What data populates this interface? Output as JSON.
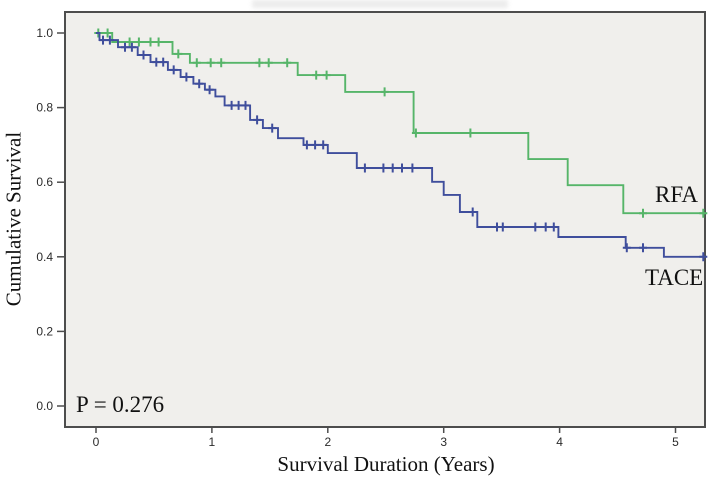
{
  "figure": {
    "background": "#ffffff",
    "plot_background": "#f0efec",
    "border_color": "#4d4d4d",
    "tick_color": "#4d4d4d",
    "tick_label_color": "#2b2b2b"
  },
  "chart_data": {
    "type": "line",
    "subtype": "kaplan_meier_step",
    "title": "",
    "xlabel": "Survival Duration (Years)",
    "ylabel": "Cumulative Survival",
    "annotation": {
      "text": "P = 0.276",
      "position": "bottom-left"
    },
    "grid": false,
    "legend_position": "labels-at-line-ends",
    "xlim": [
      -0.27,
      5.27
    ],
    "ylim": [
      -0.06,
      1.06
    ],
    "x_ticks": [
      {
        "label": "0",
        "value": 0
      },
      {
        "label": "1",
        "value": 1
      },
      {
        "label": "2",
        "value": 2
      },
      {
        "label": "3",
        "value": 3
      },
      {
        "label": "4",
        "value": 4
      },
      {
        "label": "5",
        "value": 5
      }
    ],
    "y_ticks": [
      {
        "label": "0.0",
        "value": 0.0
      },
      {
        "label": "0.2",
        "value": 0.2
      },
      {
        "label": "0.4",
        "value": 0.4
      },
      {
        "label": "0.6",
        "value": 0.6
      },
      {
        "label": "0.8",
        "value": 0.8
      },
      {
        "label": "1.0",
        "value": 1.0
      }
    ],
    "series": [
      {
        "name": "RFA",
        "color": "#56b569",
        "end_time": 5.26,
        "steps": [
          [
            0.0,
            1.0
          ],
          [
            0.14,
            0.976
          ],
          [
            0.66,
            0.944
          ],
          [
            0.81,
            0.92
          ],
          [
            1.74,
            0.887
          ],
          [
            2.15,
            0.842
          ],
          [
            2.74,
            0.732
          ],
          [
            3.73,
            0.662
          ],
          [
            4.07,
            0.592
          ],
          [
            4.55,
            0.517
          ]
        ],
        "censor_marks": [
          [
            0.02,
            1.0
          ],
          [
            0.1,
            1.0
          ],
          [
            0.29,
            0.976
          ],
          [
            0.37,
            0.976
          ],
          [
            0.47,
            0.976
          ],
          [
            0.54,
            0.976
          ],
          [
            0.71,
            0.944
          ],
          [
            0.87,
            0.92
          ],
          [
            0.99,
            0.92
          ],
          [
            1.08,
            0.92
          ],
          [
            1.41,
            0.92
          ],
          [
            1.49,
            0.92
          ],
          [
            1.65,
            0.92
          ],
          [
            1.9,
            0.887
          ],
          [
            1.99,
            0.887
          ],
          [
            2.49,
            0.842
          ],
          [
            2.76,
            0.732
          ],
          [
            3.23,
            0.732
          ],
          [
            4.72,
            0.517
          ],
          [
            5.24,
            0.517
          ]
        ]
      },
      {
        "name": "TACE",
        "color": "#3f4e9c",
        "end_time": 5.27,
        "steps": [
          [
            0.0,
            1.0
          ],
          [
            0.03,
            0.981
          ],
          [
            0.19,
            0.962
          ],
          [
            0.36,
            0.941
          ],
          [
            0.47,
            0.922
          ],
          [
            0.62,
            0.901
          ],
          [
            0.73,
            0.882
          ],
          [
            0.84,
            0.864
          ],
          [
            0.94,
            0.848
          ],
          [
            1.03,
            0.83
          ],
          [
            1.11,
            0.806
          ],
          [
            1.33,
            0.767
          ],
          [
            1.44,
            0.745
          ],
          [
            1.57,
            0.718
          ],
          [
            1.79,
            0.7
          ],
          [
            2.0,
            0.678
          ],
          [
            2.25,
            0.638
          ],
          [
            2.9,
            0.601
          ],
          [
            3.0,
            0.566
          ],
          [
            3.14,
            0.52
          ],
          [
            3.29,
            0.48
          ],
          [
            3.99,
            0.453
          ],
          [
            4.57,
            0.424
          ],
          [
            4.9,
            0.4
          ]
        ],
        "censor_marks": [
          [
            0.06,
            0.981
          ],
          [
            0.12,
            0.981
          ],
          [
            0.25,
            0.962
          ],
          [
            0.31,
            0.962
          ],
          [
            0.41,
            0.941
          ],
          [
            0.52,
            0.922
          ],
          [
            0.58,
            0.922
          ],
          [
            0.67,
            0.901
          ],
          [
            0.78,
            0.882
          ],
          [
            0.89,
            0.864
          ],
          [
            0.98,
            0.848
          ],
          [
            1.17,
            0.806
          ],
          [
            1.23,
            0.806
          ],
          [
            1.29,
            0.806
          ],
          [
            1.39,
            0.767
          ],
          [
            1.52,
            0.745
          ],
          [
            1.82,
            0.7
          ],
          [
            1.89,
            0.7
          ],
          [
            1.96,
            0.7
          ],
          [
            2.32,
            0.638
          ],
          [
            2.48,
            0.638
          ],
          [
            2.56,
            0.638
          ],
          [
            2.64,
            0.638
          ],
          [
            2.73,
            0.638
          ],
          [
            3.25,
            0.52
          ],
          [
            3.46,
            0.48
          ],
          [
            3.51,
            0.48
          ],
          [
            3.79,
            0.48
          ],
          [
            3.88,
            0.48
          ],
          [
            3.95,
            0.48
          ],
          [
            4.58,
            0.424
          ],
          [
            4.72,
            0.424
          ],
          [
            5.24,
            0.4
          ]
        ]
      }
    ]
  }
}
